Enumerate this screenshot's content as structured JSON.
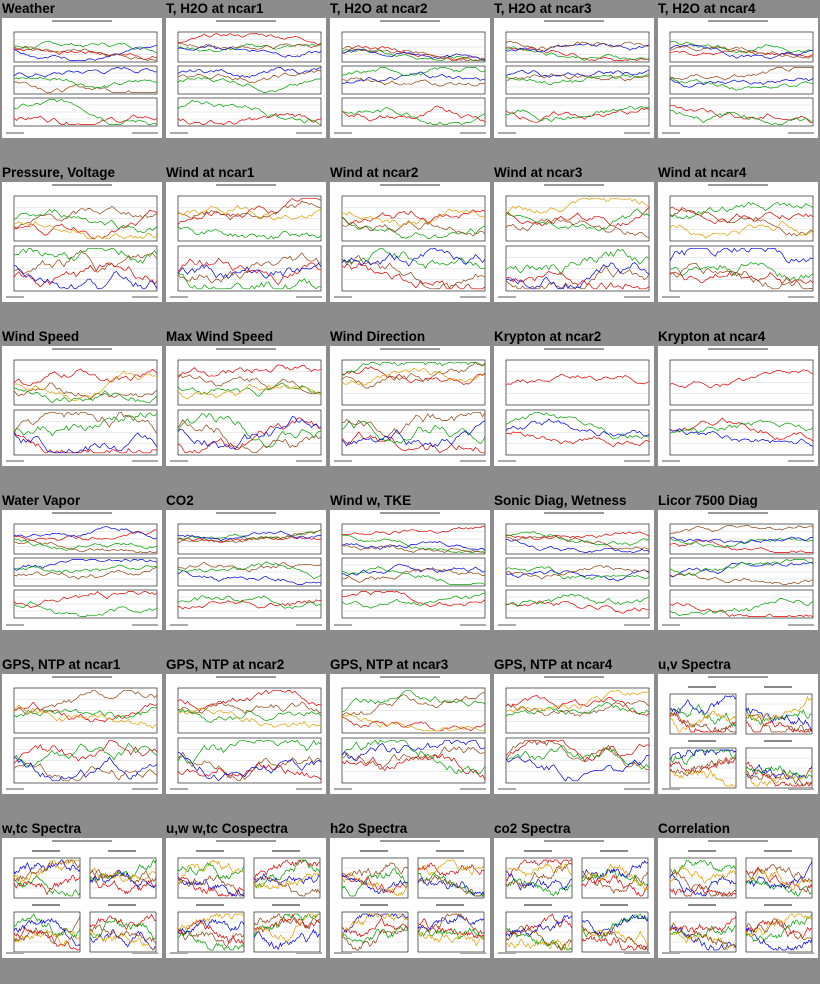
{
  "page": {
    "background": "#8c8c8c",
    "rows": [
      [
        "Weather",
        "T, H2O at ncar1",
        "T, H2O at ncar2",
        "T, H2O at ncar3",
        "T, H2O at ncar4"
      ],
      [
        "Pressure, Voltage",
        "Wind at ncar1",
        "Wind at ncar2",
        "Wind at ncar3",
        "Wind at ncar4"
      ],
      [
        "Wind Speed",
        "Max Wind Speed",
        "Wind Direction",
        "Krypton at ncar2",
        "Krypton at ncar4"
      ],
      [
        "Water Vapor",
        "CO2",
        "Wind w, TKE",
        "Sonic Diag, Wetness",
        "Licor 7500 Diag"
      ],
      [
        "GPS, NTP at ncar1",
        "GPS, NTP at ncar2",
        "GPS, NTP at ncar3",
        "GPS, NTP at ncar4",
        "u,v Spectra"
      ],
      [
        "w,tc Spectra",
        "u,w w,tc Cospectra",
        "h2o Spectra",
        "co2 Spectra",
        "Correlation"
      ]
    ]
  },
  "thumb_kinds": [
    [
      "ts3",
      "ts3",
      "ts3",
      "ts3",
      "ts3"
    ],
    [
      "ts2",
      "ts2",
      "ts2",
      "ts2",
      "ts2"
    ],
    [
      "ts2",
      "ts2",
      "ts2",
      "ts1",
      "ts1"
    ],
    [
      "ts3",
      "ts3",
      "ts3",
      "ts3",
      "ts3"
    ],
    [
      "ts2",
      "ts2",
      "ts2",
      "ts2",
      "spec"
    ],
    [
      "spec",
      "spec",
      "spec",
      "spec",
      "spec"
    ]
  ],
  "colors": {
    "red": "#e00000",
    "green": "#00a000",
    "blue": "#0000e0",
    "orange": "#e0a000",
    "brown": "#8b4513",
    "black": "#000000"
  }
}
